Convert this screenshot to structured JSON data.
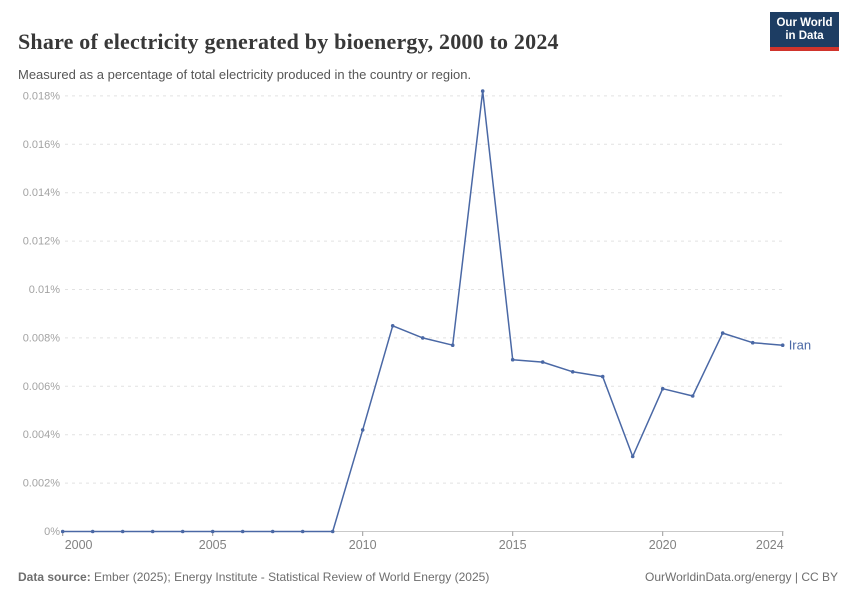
{
  "header": {
    "title": "Share of electricity generated by bioenergy, 2000 to 2024",
    "subtitle": "Measured as a percentage of total electricity produced in the country or region."
  },
  "logo": {
    "line1": "Our World",
    "line2": "in Data"
  },
  "chart_data": {
    "type": "line",
    "title": "Share of electricity generated by bioenergy, 2000 to 2024",
    "xlabel": "",
    "ylabel": "",
    "unit": "%",
    "x": [
      2000,
      2001,
      2002,
      2003,
      2004,
      2005,
      2006,
      2007,
      2008,
      2009,
      2010,
      2011,
      2012,
      2013,
      2014,
      2015,
      2016,
      2017,
      2018,
      2019,
      2020,
      2021,
      2022,
      2023,
      2024
    ],
    "series": [
      {
        "name": "Iran",
        "values": [
          0,
          0,
          0,
          0,
          0,
          0,
          0,
          0,
          0,
          0,
          0.0042,
          0.0085,
          0.008,
          0.0077,
          0.0182,
          0.0071,
          0.007,
          0.0066,
          0.0064,
          0.0031,
          0.0059,
          0.0056,
          0.0082,
          0.0078,
          0.0077
        ]
      }
    ],
    "x_ticks": [
      2000,
      2005,
      2010,
      2015,
      2020,
      2024
    ],
    "y_ticks": [
      {
        "value": 0,
        "label": "0%"
      },
      {
        "value": 0.002,
        "label": "0.002%"
      },
      {
        "value": 0.004,
        "label": "0.004%"
      },
      {
        "value": 0.006,
        "label": "0.006%"
      },
      {
        "value": 0.008,
        "label": "0.008%"
      },
      {
        "value": 0.01,
        "label": "0.01%"
      },
      {
        "value": 0.012,
        "label": "0.012%"
      },
      {
        "value": 0.014,
        "label": "0.014%"
      },
      {
        "value": 0.016,
        "label": "0.016%"
      },
      {
        "value": 0.018,
        "label": "0.018%"
      }
    ],
    "ylim": [
      0,
      0.0185
    ],
    "grid": "horizontal-dashed",
    "legend_position": "end-of-line-label"
  },
  "colors": {
    "series": "#4a68a5",
    "grid": "#e2e2e2",
    "axis": "#c9c9c9",
    "tick_mark": "#999999",
    "tick_label_y": "#a3a3a3",
    "tick_label_x": "#828282",
    "logo_bg": "#1d3d63",
    "logo_accent": "#d0342c"
  },
  "footer": {
    "datasource_label": "Data source:",
    "datasource_text": " Ember (2025); Energy Institute - Statistical Review of World Energy (2025)",
    "rights": "OurWorldinData.org/energy | CC BY"
  }
}
